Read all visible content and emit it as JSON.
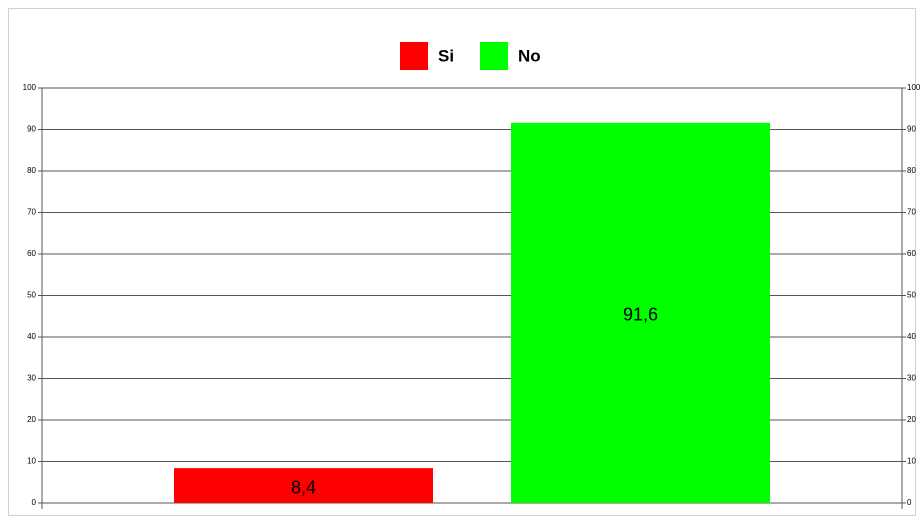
{
  "chart_data": {
    "type": "bar",
    "categories": [
      null
    ],
    "series": [
      {
        "name": "Si",
        "color": "#ff0000",
        "values": [
          8.4
        ],
        "value_labels": [
          "8,4"
        ]
      },
      {
        "name": "No",
        "color": "#00ff00",
        "values": [
          91.6
        ],
        "value_labels": [
          "91,6"
        ]
      }
    ],
    "ylim": [
      0,
      100
    ],
    "yticks": [
      0,
      10,
      20,
      30,
      40,
      50,
      60,
      70,
      80,
      90,
      100
    ],
    "y2lim": [
      0,
      100
    ],
    "y2ticks": [
      0,
      10,
      20,
      30,
      40,
      50,
      60,
      70,
      80,
      90,
      100
    ],
    "grid": true,
    "legend": "top"
  }
}
